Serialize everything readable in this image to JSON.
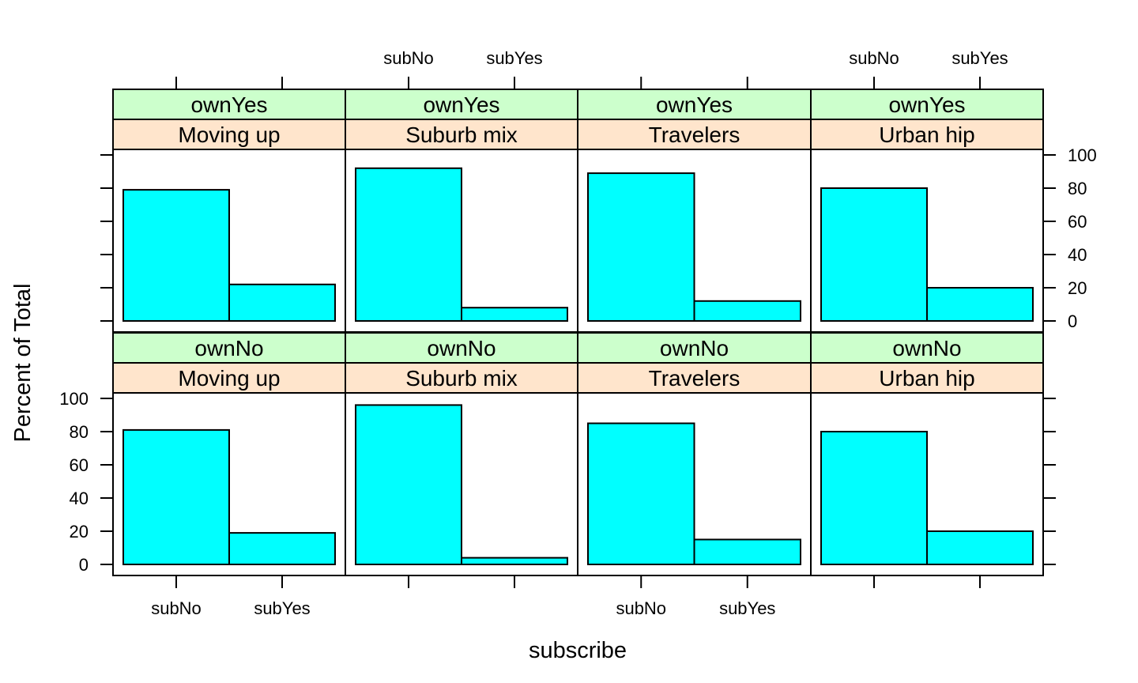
{
  "chart_data": {
    "type": "bar",
    "xlabel": "subscribe",
    "ylabel": "Percent of Total",
    "categories": [
      "subNo",
      "subYes"
    ],
    "ylim": [
      0,
      100
    ],
    "yticks": [
      0,
      20,
      40,
      60,
      80,
      100
    ],
    "colors": {
      "bar_fill": "#00ffff",
      "strip_outer": "#ccffcc",
      "strip_inner": "#ffe5cc"
    },
    "panels": [
      {
        "own": "ownYes",
        "segment": "Moving up",
        "values": [
          79,
          22
        ]
      },
      {
        "own": "ownYes",
        "segment": "Suburb mix",
        "values": [
          92,
          8
        ]
      },
      {
        "own": "ownYes",
        "segment": "Travelers",
        "values": [
          89,
          12
        ]
      },
      {
        "own": "ownYes",
        "segment": "Urban hip",
        "values": [
          80,
          20
        ]
      },
      {
        "own": "ownNo",
        "segment": "Moving up",
        "values": [
          81,
          19
        ]
      },
      {
        "own": "ownNo",
        "segment": "Suburb mix",
        "values": [
          96,
          4
        ]
      },
      {
        "own": "ownNo",
        "segment": "Travelers",
        "values": [
          85,
          15
        ]
      },
      {
        "own": "ownNo",
        "segment": "Urban hip",
        "values": [
          80,
          20
        ]
      }
    ]
  }
}
